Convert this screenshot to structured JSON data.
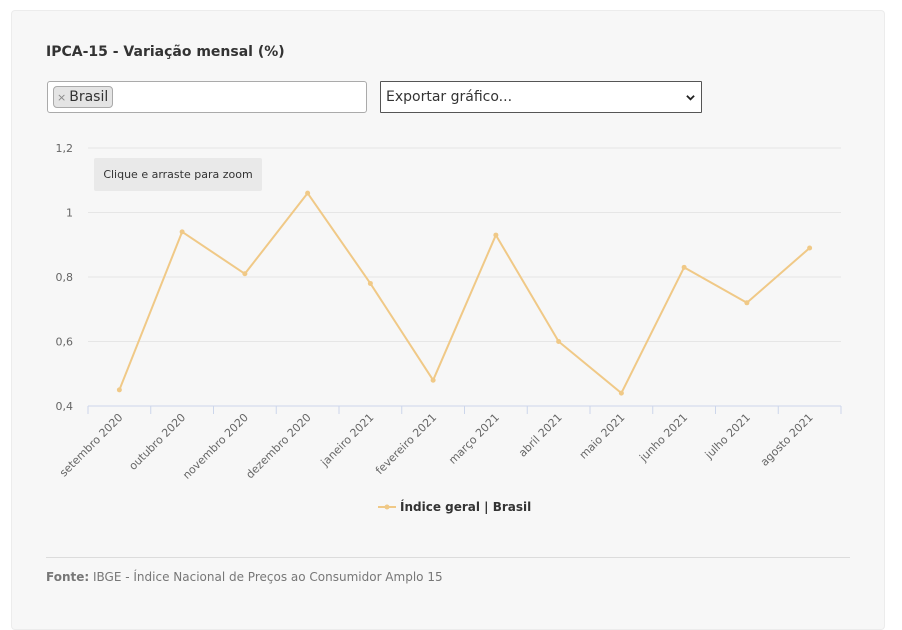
{
  "header": {
    "title": "IPCA-15 - Variação mensal (%)"
  },
  "filter": {
    "tag_remove": "×",
    "tag_label": "Brasil"
  },
  "export": {
    "label": "Exportar gráfico..."
  },
  "zoom_hint": "Clique e arraste para zoom",
  "footer": {
    "source_label": "Fonte:",
    "source_text": " IBGE - Índice Nacional de Preços ao Consumidor Amplo 15"
  },
  "colors": {
    "series": "#f0c987",
    "grid": "#e6e6e6",
    "axis": "#ccd6eb"
  },
  "chart_data": {
    "type": "line",
    "title": "IPCA-15 - Variação mensal (%)",
    "categories": [
      "setembro 2020",
      "outubro 2020",
      "novembro 2020",
      "dezembro 2020",
      "janeiro 2021",
      "fevereiro 2021",
      "março 2021",
      "abril 2021",
      "maio 2021",
      "junho 2021",
      "julho 2021",
      "agosto 2021"
    ],
    "series": [
      {
        "name": "Índice geral | Brasil",
        "values": [
          0.45,
          0.94,
          0.81,
          1.06,
          0.78,
          0.48,
          0.93,
          0.6,
          0.44,
          0.83,
          0.72,
          0.89
        ]
      }
    ],
    "ylim": [
      0.4,
      1.2
    ],
    "yticks": [
      0.4,
      0.6,
      0.8,
      1.0,
      1.2
    ],
    "ytick_labels": [
      "0,4",
      "0,6",
      "0,8",
      "1",
      "1,2"
    ],
    "grid": true,
    "legend_position": "bottom-center"
  }
}
